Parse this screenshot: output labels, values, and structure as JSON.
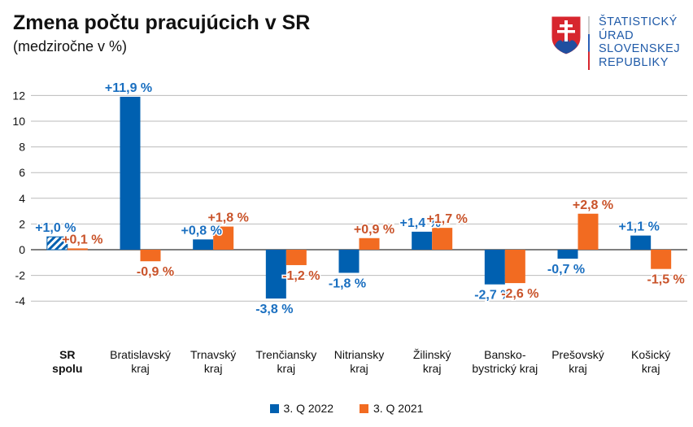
{
  "header": {
    "title": "Zmena počtu pracujúcich v SR",
    "subtitle": "(medziročne v %)"
  },
  "logo": {
    "text": "ŠTATISTICKÝ ÚRAD SLOVENSKEJ REPUBLIKY",
    "lines": [
      "ŠTATISTICKÝ",
      "ÚRAD",
      "SLOVENSKEJ",
      "REPUBLIKY"
    ]
  },
  "chart_data": {
    "type": "bar",
    "title": "Zmena počtu pracujúcich v SR",
    "subtitle": "(medziročne v %)",
    "categories": [
      "SR\nspolu",
      "Bratislavský\nkraj",
      "Trnavský\nkraj",
      "Trenčiansky\nkraj",
      "Nitriansky\nkraj",
      "Žilinský\nkraj",
      "Bansko-\nbystrický kraj",
      "Prešovský\nkraj",
      "Košický\nkraj"
    ],
    "series": [
      {
        "name": "3. Q 2022",
        "color": "#0060b0",
        "label_color": "#1a6fc0",
        "values": [
          1.0,
          11.9,
          0.8,
          -3.8,
          -1.8,
          1.4,
          -2.7,
          -0.7,
          1.1
        ],
        "labels": [
          "+1,0 %",
          "+11,9 %",
          "+0,8 %",
          "-3,8 %",
          "-1,8 %",
          "+1,4 %",
          "-2,7 %",
          "-0,7 %",
          "+1,1 %"
        ]
      },
      {
        "name": "3. Q 2021",
        "color": "#f26b21",
        "label_color": "#c9532a",
        "values": [
          0.1,
          -0.9,
          1.8,
          -1.2,
          0.9,
          1.7,
          -2.6,
          2.8,
          -1.5
        ],
        "labels": [
          "+0,1 %",
          "-0,9 %",
          "+1,8 %",
          "-1,2 %",
          "+0,9 %",
          "+1,7 %",
          "-2,6 %",
          "+2,8 %",
          "-1,5 %"
        ]
      }
    ],
    "yticks": [
      -4,
      -2,
      0,
      2,
      4,
      6,
      8,
      10,
      12
    ],
    "ylim": [
      -5.5,
      12.5
    ],
    "grid": true,
    "legend": "bottom",
    "highlight": "first category (SR spolu) drawn with hatched bars, label bold"
  }
}
